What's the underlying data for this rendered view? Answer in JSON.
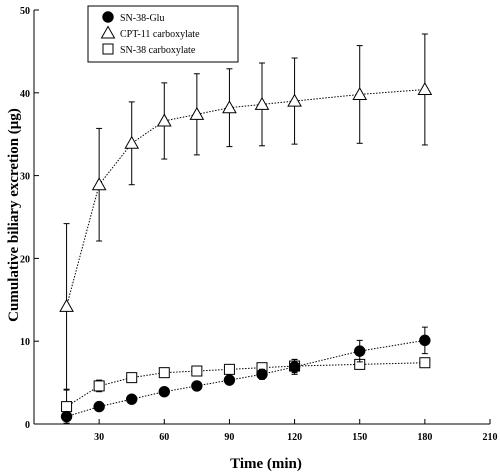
{
  "chart_data": {
    "type": "line",
    "xlabel": "Time (min)",
    "ylabel": "Cumulative biliary excretion (μg)",
    "xlim": [
      0,
      210
    ],
    "ylim": [
      0,
      50
    ],
    "x_ticks": [
      "30",
      "60",
      "90",
      "120",
      "150",
      "180",
      "210"
    ],
    "y_ticks": [
      "0",
      "10",
      "20",
      "30",
      "40",
      "50"
    ],
    "grid": false,
    "legend_position": "top-left",
    "series": [
      {
        "name": "SN-38-Glu",
        "marker": "filled-circle",
        "x": [
          15,
          30,
          45,
          60,
          75,
          90,
          105,
          120,
          150,
          180
        ],
        "y": [
          0.9,
          2.1,
          3.0,
          3.9,
          4.6,
          5.3,
          6.0,
          6.9,
          8.8,
          10.1
        ],
        "error": [
          0,
          0,
          0,
          0,
          0,
          0,
          0.6,
          0.9,
          1.3,
          1.6
        ]
      },
      {
        "name": "CPT-11 carboxylate",
        "marker": "open-triangle",
        "x": [
          15,
          30,
          45,
          60,
          75,
          90,
          105,
          120,
          150,
          180
        ],
        "y": [
          14.2,
          28.9,
          33.9,
          36.6,
          37.4,
          38.2,
          38.6,
          39.0,
          39.8,
          40.4
        ],
        "error": [
          10.0,
          6.8,
          5.0,
          4.6,
          4.9,
          4.7,
          5.0,
          5.2,
          5.9,
          6.7
        ]
      },
      {
        "name": "SN-38 carboxylate",
        "marker": "open-square",
        "x": [
          15,
          30,
          45,
          60,
          75,
          90,
          105,
          120,
          150,
          180
        ],
        "y": [
          2.1,
          4.6,
          5.6,
          6.2,
          6.4,
          6.6,
          6.8,
          7.0,
          7.2,
          7.4
        ],
        "error": [
          2.0,
          0.7,
          0.5,
          0.3,
          0.3,
          0.3,
          0.4,
          0.8,
          0.5,
          0.4
        ]
      }
    ]
  }
}
